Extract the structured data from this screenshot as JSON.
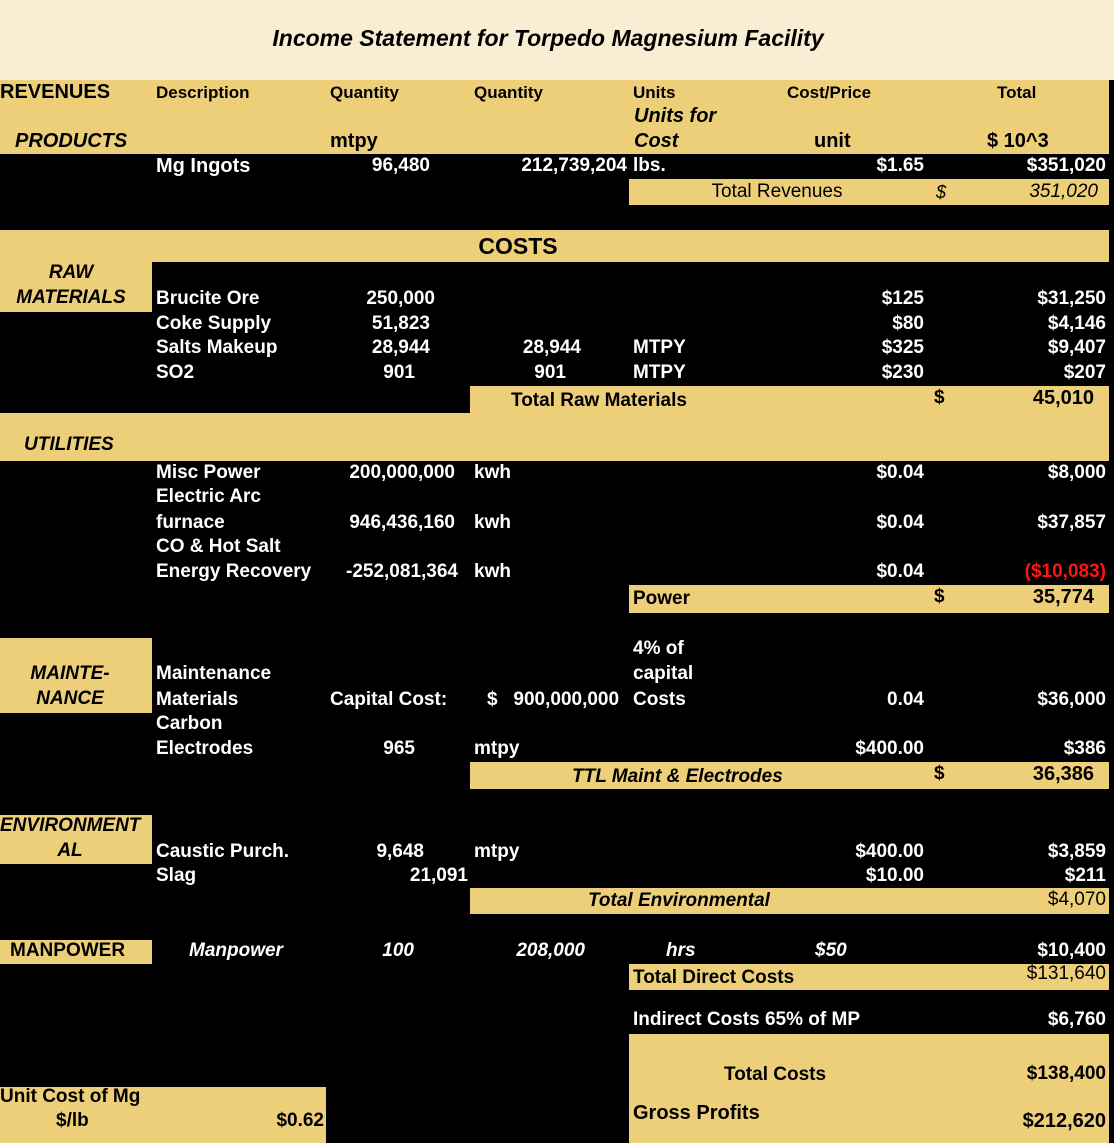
{
  "title": "Income Statement for Torpedo Magnesium Facility",
  "header": {
    "revenues": "REVENUES",
    "description": "Description",
    "quantity1": "Quantity",
    "quantity2": "Quantity",
    "units": "Units",
    "cost_price": "Cost/Price",
    "total": "Total",
    "units_for": "Units for",
    "cost": "Cost",
    "products": "PRODUCTS",
    "mtpy": "mtpy",
    "unit": "unit",
    "thousands": "$ 10^3"
  },
  "revenue_row": {
    "description": "Mg Ingots",
    "qty1": "96,480",
    "qty2": "212,739,204",
    "units": "lbs.",
    "price": "$1.65",
    "total": "$351,020"
  },
  "total_revenues": {
    "label": "Total Revenues",
    "currency": "$",
    "value": "351,020"
  },
  "costs_heading": "COSTS",
  "raw_materials": {
    "section": [
      "RAW",
      "MATERIALS"
    ],
    "rows": [
      {
        "desc": "Brucite Ore",
        "qty1": "250,000",
        "qty2": "",
        "units": "",
        "price": "$125",
        "total": "$31,250"
      },
      {
        "desc": "Coke Supply",
        "qty1": "51,823",
        "qty2": "",
        "units": "",
        "price": "$80",
        "total": "$4,146"
      },
      {
        "desc": "Salts Makeup",
        "qty1": "28,944",
        "qty2": "28,944",
        "units": "MTPY",
        "price": "$325",
        "total": "$9,407"
      },
      {
        "desc": "SO2",
        "qty1": "901",
        "qty2": "901",
        "units": "MTPY",
        "price": "$230",
        "total": "$207"
      }
    ],
    "total_label": "Total Raw Materials",
    "total_currency": "$",
    "total_value": "45,010"
  },
  "utilities": {
    "section": "UTILITIES",
    "rows": [
      {
        "desc": "Misc Power",
        "qty": "200,000,000",
        "units": "kwh",
        "price": "$0.04",
        "total": "$8,000"
      },
      {
        "desc1": "Electric Arc",
        "desc": "furnace",
        "qty": "946,436,160",
        "units": "kwh",
        "price": "$0.04",
        "total": "$37,857"
      },
      {
        "desc1": "CO & Hot Salt",
        "desc": "Energy Recovery",
        "qty": "-252,081,364",
        "units": "kwh",
        "price": "$0.04",
        "total": "($10,083)"
      }
    ],
    "total_label": "Power",
    "total_currency": "$",
    "total_value": "35,774"
  },
  "maintenance": {
    "section": [
      "MAINTE-",
      "NANCE"
    ],
    "desc1": "Maintenance",
    "desc2": "Materials",
    "capital_label": "Capital Cost:",
    "capital_value": "$   900,000,000",
    "units1": "4% of",
    "units2": "capital",
    "units3": "Costs",
    "rate": "0.04",
    "total1": "$36,000",
    "carbon1": "Carbon",
    "carbon2": "Electrodes",
    "carbon_qty": "965",
    "carbon_units": "mtpy",
    "carbon_price": "$400.00",
    "carbon_total": "$386",
    "total_label": "TTL Maint & Electrodes",
    "total_currency": "$",
    "total_value": "36,386"
  },
  "environmental": {
    "section": [
      "ENVIRONMENT",
      "AL"
    ],
    "rows": [
      {
        "desc": "Caustic Purch.",
        "qty": "9,648",
        "units": "mtpy",
        "price": "$400.00",
        "total": "$3,859"
      },
      {
        "desc": "Slag",
        "qty": "21,091",
        "units": "",
        "price": "$10.00",
        "total": "$211"
      }
    ],
    "total_label": "Total Environmental",
    "total_value": "$4,070"
  },
  "manpower": {
    "section": "MANPOWER",
    "desc": "Manpower",
    "qty": "100",
    "hours": "208,000",
    "units": "hrs",
    "rate": "$50",
    "total": "$10,400"
  },
  "summary": {
    "direct_label": "Total Direct Costs",
    "direct_value": "$131,640",
    "indirect_label": "Indirect Costs 65% of MP",
    "indirect_value": "$6,760",
    "total_costs_label": "Total Costs",
    "total_costs_value": "$138,400",
    "unit_cost_label1": "Unit Cost of Mg",
    "unit_cost_label2": "$/lb",
    "unit_cost_value": "$0.62",
    "gross_label": "Gross Profits",
    "gross_value": "$212,620"
  },
  "colors": {
    "tan": "#edcf7a",
    "cream": "#f9edd4",
    "black": "#000000",
    "negative": "#ff1414"
  }
}
